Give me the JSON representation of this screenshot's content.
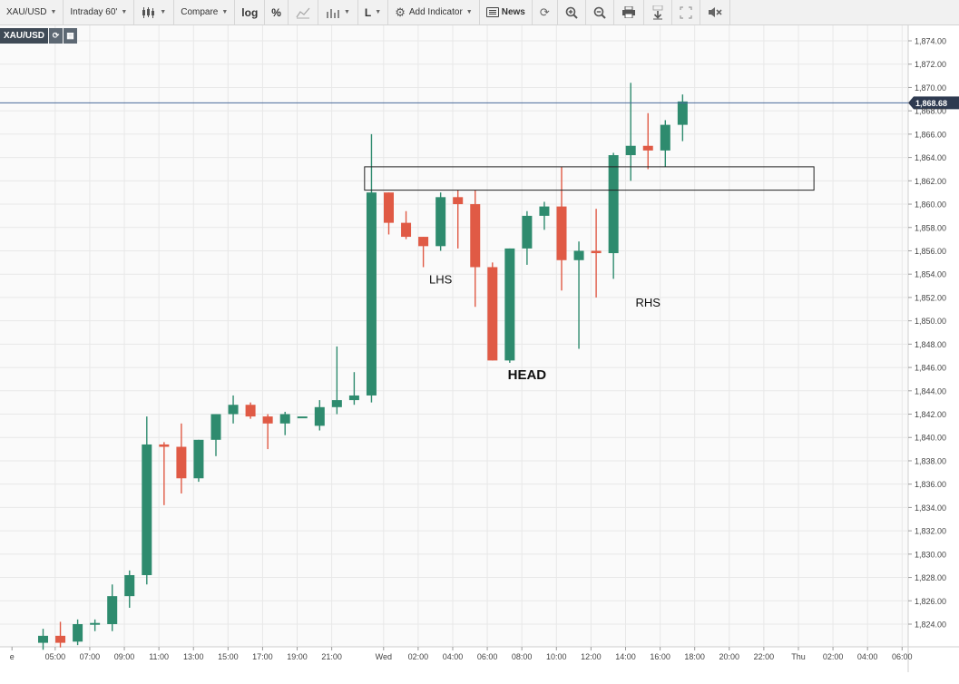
{
  "toolbar": {
    "symbol": "XAU/USD",
    "interval": "Intraday 60'",
    "compare": "Compare",
    "log": "log",
    "percent": "%",
    "line_type": "L",
    "add_indicator": "Add Indicator",
    "news": "News"
  },
  "symbol_tag": "XAU/USD",
  "chart_data": {
    "type": "candlestick",
    "symbol": "XAU/USD",
    "interval": "60 min",
    "last_price": "1,868.68",
    "y_axis": {
      "min": 1822,
      "max": 1875,
      "ticks": [
        1824,
        1826,
        1828,
        1830,
        1832,
        1834,
        1836,
        1838,
        1840,
        1842,
        1844,
        1846,
        1848,
        1850,
        1852,
        1854,
        1856,
        1858,
        1860,
        1862,
        1864,
        1866,
        1868,
        1870,
        1872,
        1874
      ]
    },
    "x_labels": [
      {
        "label": "e",
        "slot": -1.8
      },
      {
        "label": "05:00",
        "slot": 0.7
      },
      {
        "label": "07:00",
        "slot": 2.7
      },
      {
        "label": "09:00",
        "slot": 4.7
      },
      {
        "label": "11:00",
        "slot": 6.7
      },
      {
        "label": "13:00",
        "slot": 8.7
      },
      {
        "label": "15:00",
        "slot": 10.7
      },
      {
        "label": "17:00",
        "slot": 12.7
      },
      {
        "label": "19:00",
        "slot": 14.7
      },
      {
        "label": "21:00",
        "slot": 16.7
      },
      {
        "label": "Wed",
        "slot": 19.7
      },
      {
        "label": "02:00",
        "slot": 21.7
      },
      {
        "label": "04:00",
        "slot": 23.7
      },
      {
        "label": "06:00",
        "slot": 25.7
      },
      {
        "label": "08:00",
        "slot": 27.7
      },
      {
        "label": "10:00",
        "slot": 29.7
      },
      {
        "label": "12:00",
        "slot": 31.7
      },
      {
        "label": "14:00",
        "slot": 33.7
      },
      {
        "label": "16:00",
        "slot": 35.7
      },
      {
        "label": "18:00",
        "slot": 37.7
      },
      {
        "label": "20:00",
        "slot": 39.7
      },
      {
        "label": "22:00",
        "slot": 41.7
      },
      {
        "label": "Thu",
        "slot": 43.7
      },
      {
        "label": "02:00",
        "slot": 45.7
      },
      {
        "label": "04:00",
        "slot": 47.7
      },
      {
        "label": "06:00",
        "slot": 49.7
      }
    ],
    "candles": [
      {
        "o": 1822.4,
        "h": 1823.6,
        "l": 1821.8,
        "c": 1823.0
      },
      {
        "o": 1823.0,
        "h": 1824.2,
        "l": 1822.0,
        "c": 1822.4
      },
      {
        "o": 1822.5,
        "h": 1824.4,
        "l": 1822.2,
        "c": 1824.0
      },
      {
        "o": 1824.0,
        "h": 1824.4,
        "l": 1823.4,
        "c": 1824.1
      },
      {
        "o": 1824.0,
        "h": 1827.4,
        "l": 1823.4,
        "c": 1826.4
      },
      {
        "o": 1826.4,
        "h": 1828.6,
        "l": 1825.4,
        "c": 1828.2
      },
      {
        "o": 1828.2,
        "h": 1841.8,
        "l": 1827.4,
        "c": 1839.4
      },
      {
        "o": 1839.4,
        "h": 1839.6,
        "l": 1834.2,
        "c": 1839.2
      },
      {
        "o": 1839.2,
        "h": 1841.2,
        "l": 1835.2,
        "c": 1836.5
      },
      {
        "o": 1836.5,
        "h": 1839.8,
        "l": 1836.2,
        "c": 1839.8
      },
      {
        "o": 1839.8,
        "h": 1842.0,
        "l": 1838.4,
        "c": 1842.0
      },
      {
        "o": 1842.0,
        "h": 1843.6,
        "l": 1841.2,
        "c": 1842.8
      },
      {
        "o": 1842.8,
        "h": 1843.0,
        "l": 1841.6,
        "c": 1841.8
      },
      {
        "o": 1841.8,
        "h": 1842.0,
        "l": 1839.0,
        "c": 1841.2
      },
      {
        "o": 1841.2,
        "h": 1842.2,
        "l": 1840.2,
        "c": 1842.0
      },
      {
        "o": 1841.8,
        "h": 1841.8,
        "l": 1841.8,
        "c": 1841.8
      },
      {
        "o": 1841.0,
        "h": 1843.2,
        "l": 1840.6,
        "c": 1842.6
      },
      {
        "o": 1842.6,
        "h": 1847.8,
        "l": 1842.0,
        "c": 1843.2
      },
      {
        "o": 1843.2,
        "h": 1845.6,
        "l": 1842.8,
        "c": 1843.6
      },
      {
        "o": 1843.6,
        "h": 1866.0,
        "l": 1843.0,
        "c": 1861.0
      },
      {
        "o": 1861.0,
        "h": 1861.0,
        "l": 1857.4,
        "c": 1858.4
      },
      {
        "o": 1858.4,
        "h": 1859.4,
        "l": 1857.0,
        "c": 1857.2
      },
      {
        "o": 1857.2,
        "h": 1857.2,
        "l": 1854.6,
        "c": 1856.4
      },
      {
        "o": 1856.4,
        "h": 1861.0,
        "l": 1856.0,
        "c": 1860.6
      },
      {
        "o": 1860.6,
        "h": 1861.2,
        "l": 1856.2,
        "c": 1860.0
      },
      {
        "o": 1860.0,
        "h": 1861.2,
        "l": 1851.2,
        "c": 1854.6
      },
      {
        "o": 1854.6,
        "h": 1855.0,
        "l": 1846.6,
        "c": 1846.6
      },
      {
        "o": 1846.6,
        "h": 1856.2,
        "l": 1846.4,
        "c": 1856.2
      },
      {
        "o": 1856.2,
        "h": 1859.4,
        "l": 1854.8,
        "c": 1859.0
      },
      {
        "o": 1859.0,
        "h": 1860.2,
        "l": 1857.8,
        "c": 1859.8
      },
      {
        "o": 1859.8,
        "h": 1863.2,
        "l": 1852.6,
        "c": 1855.2
      },
      {
        "o": 1855.2,
        "h": 1856.8,
        "l": 1847.6,
        "c": 1856.0
      },
      {
        "o": 1856.0,
        "h": 1859.6,
        "l": 1852.0,
        "c": 1855.8
      },
      {
        "o": 1855.8,
        "h": 1864.4,
        "l": 1853.6,
        "c": 1864.2
      },
      {
        "o": 1864.2,
        "h": 1870.4,
        "l": 1862.0,
        "c": 1865.0
      },
      {
        "o": 1865.0,
        "h": 1867.8,
        "l": 1863.0,
        "c": 1864.6
      },
      {
        "o": 1864.6,
        "h": 1867.2,
        "l": 1863.2,
        "c": 1866.8
      },
      {
        "o": 1866.8,
        "h": 1869.4,
        "l": 1865.4,
        "c": 1868.8
      }
    ],
    "annotations": [
      {
        "text": "LHS",
        "slot": 23.0,
        "y": 1853.2,
        "bold": false
      },
      {
        "text": "HEAD",
        "slot": 28.0,
        "y": 1845.0,
        "bold": true
      },
      {
        "text": "RHS",
        "slot": 35.0,
        "y": 1851.2,
        "bold": false
      }
    ],
    "rectangle": {
      "slot_start": 18.6,
      "slot_end": 44.6,
      "y_top": 1863.2,
      "y_bottom": 1861.2
    },
    "colors": {
      "up": "#2e8b6e",
      "down": "#e05a45",
      "price_line": "#4a6a9a",
      "price_tag": "#2e3a50",
      "grid": "#e8e8e8"
    }
  }
}
